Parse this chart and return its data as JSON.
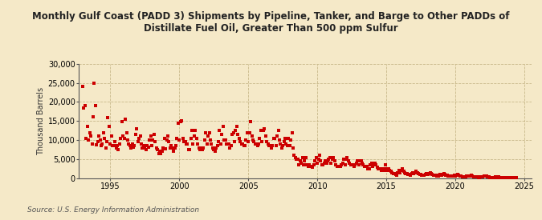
{
  "title_line1": "Monthly Gulf Coast (PADD 3) Shipments by Pipeline, Tanker, and Barge to Other PADDs of",
  "title_line2": "Distillate Fuel Oil, Greater Than 500 ppm Sulfur",
  "ylabel": "Thousand Barrels",
  "source": "Source: U.S. Energy Information Administration",
  "background_color": "#f5e9c8",
  "plot_bg_color": "#f5e9c8",
  "marker_color": "#cc0000",
  "ylim": [
    0,
    30000
  ],
  "yticks": [
    0,
    5000,
    10000,
    15000,
    20000,
    25000,
    30000
  ],
  "xlim_start": 1992.7,
  "xlim_end": 2025.5,
  "xticks": [
    1995,
    2000,
    2005,
    2010,
    2015,
    2020,
    2025
  ],
  "data": {
    "dates": [
      1993.0,
      1993.08,
      1993.17,
      1993.25,
      1993.33,
      1993.42,
      1993.5,
      1993.58,
      1993.67,
      1993.75,
      1993.83,
      1993.92,
      1994.0,
      1994.08,
      1994.17,
      1994.25,
      1994.33,
      1994.42,
      1994.5,
      1994.58,
      1994.67,
      1994.75,
      1994.83,
      1994.92,
      1995.0,
      1995.08,
      1995.17,
      1995.25,
      1995.33,
      1995.42,
      1995.5,
      1995.58,
      1995.67,
      1995.75,
      1995.83,
      1995.92,
      1996.0,
      1996.08,
      1996.17,
      1996.25,
      1996.33,
      1996.42,
      1996.5,
      1996.58,
      1996.67,
      1996.75,
      1996.83,
      1996.92,
      1997.0,
      1997.08,
      1997.17,
      1997.25,
      1997.33,
      1997.42,
      1997.5,
      1997.58,
      1997.67,
      1997.75,
      1997.83,
      1997.92,
      1998.0,
      1998.08,
      1998.17,
      1998.25,
      1998.33,
      1998.42,
      1998.5,
      1998.58,
      1998.67,
      1998.75,
      1998.83,
      1998.92,
      1999.0,
      1999.08,
      1999.17,
      1999.25,
      1999.33,
      1999.42,
      1999.5,
      1999.58,
      1999.67,
      1999.75,
      1999.83,
      1999.92,
      2000.0,
      2000.08,
      2000.17,
      2000.25,
      2000.33,
      2000.42,
      2000.5,
      2000.58,
      2000.67,
      2000.75,
      2000.83,
      2000.92,
      2001.0,
      2001.08,
      2001.17,
      2001.25,
      2001.33,
      2001.42,
      2001.5,
      2001.58,
      2001.67,
      2001.75,
      2001.83,
      2001.92,
      2002.0,
      2002.08,
      2002.17,
      2002.25,
      2002.33,
      2002.42,
      2002.5,
      2002.58,
      2002.67,
      2002.75,
      2002.83,
      2002.92,
      2003.0,
      2003.08,
      2003.17,
      2003.25,
      2003.33,
      2003.42,
      2003.5,
      2003.58,
      2003.67,
      2003.75,
      2003.83,
      2003.92,
      2004.0,
      2004.08,
      2004.17,
      2004.25,
      2004.33,
      2004.42,
      2004.5,
      2004.58,
      2004.67,
      2004.75,
      2004.83,
      2004.92,
      2005.0,
      2005.08,
      2005.17,
      2005.25,
      2005.33,
      2005.42,
      2005.5,
      2005.58,
      2005.67,
      2005.75,
      2005.83,
      2005.92,
      2006.0,
      2006.08,
      2006.17,
      2006.25,
      2006.33,
      2006.42,
      2006.5,
      2006.58,
      2006.67,
      2006.75,
      2006.83,
      2006.92,
      2007.0,
      2007.08,
      2007.17,
      2007.25,
      2007.33,
      2007.42,
      2007.5,
      2007.58,
      2007.67,
      2007.75,
      2007.83,
      2007.92,
      2008.0,
      2008.08,
      2008.17,
      2008.25,
      2008.33,
      2008.42,
      2008.5,
      2008.58,
      2008.67,
      2008.75,
      2008.83,
      2008.92,
      2009.0,
      2009.08,
      2009.17,
      2009.25,
      2009.33,
      2009.42,
      2009.5,
      2009.58,
      2009.67,
      2009.75,
      2009.83,
      2009.92,
      2010.0,
      2010.08,
      2010.17,
      2010.25,
      2010.33,
      2010.42,
      2010.5,
      2010.58,
      2010.67,
      2010.75,
      2010.83,
      2010.92,
      2011.0,
      2011.08,
      2011.17,
      2011.25,
      2011.33,
      2011.42,
      2011.5,
      2011.58,
      2011.67,
      2011.75,
      2011.83,
      2011.92,
      2012.0,
      2012.08,
      2012.17,
      2012.25,
      2012.33,
      2012.42,
      2012.5,
      2012.58,
      2012.67,
      2012.75,
      2012.83,
      2012.92,
      2013.0,
      2013.08,
      2013.17,
      2013.25,
      2013.33,
      2013.42,
      2013.5,
      2013.58,
      2013.67,
      2013.75,
      2013.83,
      2013.92,
      2014.0,
      2014.08,
      2014.17,
      2014.25,
      2014.33,
      2014.42,
      2014.5,
      2014.58,
      2014.67,
      2014.75,
      2014.83,
      2014.92,
      2015.0,
      2015.08,
      2015.17,
      2015.25,
      2015.33,
      2015.42,
      2015.5,
      2015.58,
      2015.67,
      2015.75,
      2015.83,
      2015.92,
      2016.0,
      2016.08,
      2016.17,
      2016.25,
      2016.33,
      2016.42,
      2016.5,
      2016.58,
      2016.67,
      2016.75,
      2016.83,
      2016.92,
      2017.0,
      2017.08,
      2017.17,
      2017.25,
      2017.33,
      2017.42,
      2017.5,
      2017.58,
      2017.67,
      2017.75,
      2017.83,
      2017.92,
      2018.0,
      2018.08,
      2018.17,
      2018.25,
      2018.33,
      2018.42,
      2018.5,
      2018.58,
      2018.67,
      2018.75,
      2018.83,
      2018.92,
      2019.0,
      2019.08,
      2019.17,
      2019.25,
      2019.33,
      2019.42,
      2019.5,
      2019.58,
      2019.67,
      2019.75,
      2019.83,
      2019.92,
      2020.0,
      2020.08,
      2020.17,
      2020.25,
      2020.33,
      2020.42,
      2020.5,
      2020.58,
      2020.67,
      2020.75,
      2020.83,
      2020.92,
      2021.0,
      2021.08,
      2021.17,
      2021.25,
      2021.33,
      2021.42,
      2021.5,
      2021.58,
      2021.67,
      2021.75,
      2021.83,
      2021.92,
      2022.0,
      2022.08,
      2022.17,
      2022.25,
      2022.33,
      2022.42,
      2022.5,
      2022.58,
      2022.67,
      2022.75,
      2022.83,
      2022.92,
      2023.0,
      2023.08,
      2023.17,
      2023.25,
      2023.33,
      2023.42,
      2023.5,
      2023.58,
      2023.67,
      2023.75,
      2023.83,
      2023.92,
      2024.0,
      2024.08,
      2024.17,
      2024.25,
      2024.33,
      2024.42
    ],
    "values": [
      24000,
      18500,
      19000,
      10500,
      13500,
      10000,
      12000,
      11000,
      9000,
      16000,
      25000,
      19000,
      8800,
      9500,
      11000,
      10000,
      8500,
      9000,
      12000,
      10500,
      8000,
      9500,
      15800,
      13500,
      9000,
      11000,
      8500,
      8500,
      9500,
      8000,
      8500,
      7500,
      9000,
      10500,
      14800,
      11000,
      10500,
      15500,
      12000,
      10000,
      9000,
      8500,
      8000,
      9000,
      8200,
      8500,
      11500,
      13000,
      9500,
      10500,
      11000,
      9000,
      8000,
      8500,
      8000,
      7500,
      8500,
      8200,
      10000,
      11000,
      8500,
      10000,
      11500,
      9500,
      8000,
      7500,
      6500,
      7000,
      6500,
      7000,
      8000,
      10500,
      7800,
      10000,
      11000,
      9500,
      8000,
      8500,
      8000,
      7000,
      8000,
      8500,
      10500,
      14500,
      10000,
      14800,
      15000,
      10500,
      9500,
      9500,
      9000,
      9000,
      7500,
      7500,
      10500,
      12500,
      9000,
      11000,
      12500,
      10500,
      9000,
      8000,
      7500,
      8000,
      7500,
      8000,
      10000,
      12000,
      9000,
      11000,
      12000,
      10000,
      9000,
      8000,
      7500,
      7000,
      8000,
      8500,
      9500,
      12500,
      9000,
      11500,
      13500,
      10000,
      10000,
      9000,
      9000,
      9000,
      8000,
      8500,
      11500,
      12000,
      9500,
      12500,
      13500,
      11500,
      10500,
      9500,
      9000,
      9000,
      8500,
      8500,
      10000,
      12000,
      9500,
      12000,
      14800,
      11000,
      10000,
      9500,
      9000,
      9000,
      8500,
      9000,
      10500,
      12500,
      9500,
      12500,
      13000,
      11000,
      9500,
      9000,
      8500,
      8500,
      8000,
      8500,
      10500,
      10500,
      8500,
      11000,
      12500,
      10000,
      9000,
      8000,
      8500,
      9500,
      10500,
      9000,
      8500,
      10500,
      8500,
      10000,
      12000,
      8000,
      6000,
      5500,
      5000,
      5000,
      3500,
      4500,
      4000,
      5500,
      3500,
      4500,
      5500,
      3500,
      3000,
      3500,
      3000,
      3000,
      2800,
      3500,
      4500,
      5500,
      4000,
      5000,
      6000,
      4500,
      3500,
      3500,
      4000,
      4500,
      4000,
      4500,
      5000,
      5500,
      4000,
      5000,
      5500,
      4500,
      3500,
      3000,
      3000,
      3000,
      3000,
      3500,
      4000,
      5000,
      3500,
      5000,
      5500,
      4500,
      4000,
      3500,
      3500,
      3500,
      3000,
      3500,
      4000,
      4500,
      3500,
      4500,
      4500,
      4000,
      3500,
      3000,
      3000,
      3000,
      2500,
      2500,
      3500,
      4000,
      3000,
      4000,
      4000,
      3500,
      2800,
      2500,
      2500,
      2500,
      2000,
      2000,
      2500,
      3500,
      2000,
      2500,
      2500,
      2000,
      1800,
      1500,
      1200,
      1200,
      1000,
      800,
      1500,
      2000,
      1500,
      2000,
      2500,
      1800,
      1500,
      1200,
      1200,
      1000,
      1000,
      800,
      1200,
      1500,
      1200,
      1500,
      1800,
      1500,
      1200,
      1000,
      1000,
      800,
      700,
      700,
      1000,
      1200,
      1000,
      1200,
      1500,
      1200,
      1000,
      800,
      800,
      700,
      600,
      600,
      800,
      1000,
      800,
      1000,
      1200,
      1000,
      800,
      700,
      600,
      600,
      500,
      500,
      600,
      800,
      600,
      800,
      1000,
      800,
      600,
      500,
      400,
      400,
      300,
      300,
      500,
      600,
      500,
      600,
      700,
      500,
      400,
      300,
      300,
      300,
      250,
      250,
      350,
      450,
      400,
      500,
      600,
      500,
      400,
      300,
      200,
      150,
      100,
      100,
      200,
      300,
      200,
      300,
      350,
      250,
      200,
      150,
      100,
      100,
      80,
      60,
      100,
      150,
      100,
      150,
      200,
      150,
      100,
      80
    ]
  }
}
